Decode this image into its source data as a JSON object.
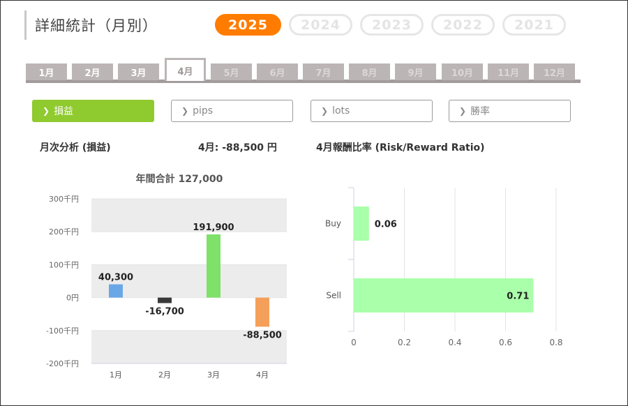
{
  "page": {
    "title": "詳細統計（月別）",
    "years": [
      "2025",
      "2024",
      "2023",
      "2022",
      "2021"
    ],
    "active_year": "2025",
    "months": [
      "1月",
      "2月",
      "3月",
      "4月",
      "5月",
      "6月",
      "7月",
      "8月",
      "9月",
      "10月",
      "11月",
      "12月"
    ],
    "active_month": "4月",
    "filters": [
      "損益",
      "pips",
      "lots",
      "勝率"
    ],
    "active_filter": "損益",
    "left_heading": "月次分析 (損益)",
    "month_result": "4月:  -88,500 円",
    "right_heading": "4月報酬比率 (Risk/Reward Ratio)"
  },
  "colors": {
    "accent": "#ff7c00",
    "filter_active": "#8fca2f",
    "tab": "#bcb5b5",
    "bar_blue": "#6aa7e6",
    "bar_dark": "#3a3a3a",
    "bar_green": "#7fe06a",
    "bar_orange": "#f5a05a",
    "bar_light_green": "#aaffaa"
  },
  "chart_data": [
    {
      "type": "bar",
      "title": "年間合計 127,000",
      "categories": [
        "1月",
        "2月",
        "3月",
        "4月"
      ],
      "values": [
        40300,
        -16700,
        191900,
        -88500
      ],
      "data_labels": [
        "40,300",
        "-16,700",
        "191,900",
        "-88,500"
      ],
      "yticks": [
        "300千円",
        "200千円",
        "100千円",
        "0円",
        "-100千円",
        "-200千円"
      ],
      "ylim": [
        -200000,
        300000
      ],
      "grid": "alternating bands",
      "legend": "none"
    },
    {
      "type": "bar",
      "orientation": "horizontal",
      "categories": [
        "Buy",
        "Sell"
      ],
      "values": [
        0.06,
        0.71
      ],
      "data_labels": [
        "0.06",
        "0.71"
      ],
      "xticks": [
        "0",
        "0.2",
        "0.4",
        "0.6",
        "0.8"
      ],
      "xlim": [
        0,
        0.8
      ],
      "grid": "vertical lines",
      "legend": "none"
    }
  ]
}
